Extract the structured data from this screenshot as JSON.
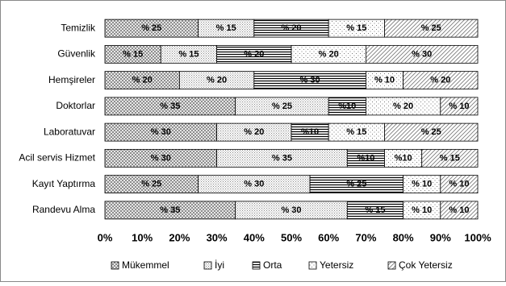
{
  "chart_data": {
    "type": "stacked-bar-horizontal",
    "categories": [
      "Temizlik",
      "Güvenlik",
      "Hemşireler",
      "Doktorlar",
      "Laboratuvar",
      "Acil servis Hizmet",
      "Kayıt Yaptırma",
      "Randevu Alma"
    ],
    "series": [
      {
        "name": "Mükemmel",
        "color": "#000000",
        "values": [
          25,
          15,
          20,
          35,
          30,
          30,
          25,
          35
        ],
        "value_labels": [
          "% 25",
          "% 15",
          "% 20",
          "% 35",
          "% 30",
          "% 30",
          "% 25",
          "% 35"
        ]
      },
      {
        "name": "İyi",
        "color": "#000000",
        "values": [
          15,
          15,
          20,
          25,
          20,
          35,
          30,
          30
        ],
        "value_labels": [
          "% 15",
          "% 15",
          "% 20",
          "% 25",
          "% 20",
          "% 35",
          "% 30",
          "% 30"
        ]
      },
      {
        "name": "Orta",
        "color": "#000000",
        "values": [
          20,
          20,
          30,
          10,
          10,
          10,
          25,
          15
        ],
        "value_labels": [
          "% 20",
          "% 20",
          "% 30",
          "%10",
          "%10",
          "%10",
          "% 25",
          "% 15"
        ]
      },
      {
        "name": "Yetersiz",
        "color": "#000000",
        "values": [
          15,
          20,
          10,
          20,
          15,
          10,
          10,
          10
        ],
        "value_labels": [
          "% 15",
          "% 20",
          "% 10",
          "% 20",
          "% 15",
          "%10",
          "% 10",
          "% 10"
        ]
      },
      {
        "name": "Çok Yetersiz",
        "color": "#000000",
        "values": [
          25,
          30,
          20,
          10,
          25,
          15,
          10,
          10
        ],
        "value_labels": [
          "% 25",
          "% 30",
          "% 20",
          "% 10",
          "% 25",
          "% 15",
          "% 10",
          "% 10"
        ]
      }
    ],
    "xlim": [
      0,
      100
    ],
    "xticks": [
      {
        "value": 0,
        "label": "0%"
      },
      {
        "value": 10,
        "label": "10%"
      },
      {
        "value": 20,
        "label": "20%"
      },
      {
        "value": 30,
        "label": "30%"
      },
      {
        "value": 40,
        "label": "40%"
      },
      {
        "value": 50,
        "label": "50%"
      },
      {
        "value": 60,
        "label": "60%"
      },
      {
        "value": 70,
        "label": "70%"
      },
      {
        "value": 80,
        "label": "80%"
      },
      {
        "value": 90,
        "label": "90%"
      },
      {
        "value": 100,
        "label": "100%"
      }
    ],
    "legend": "bottom"
  }
}
